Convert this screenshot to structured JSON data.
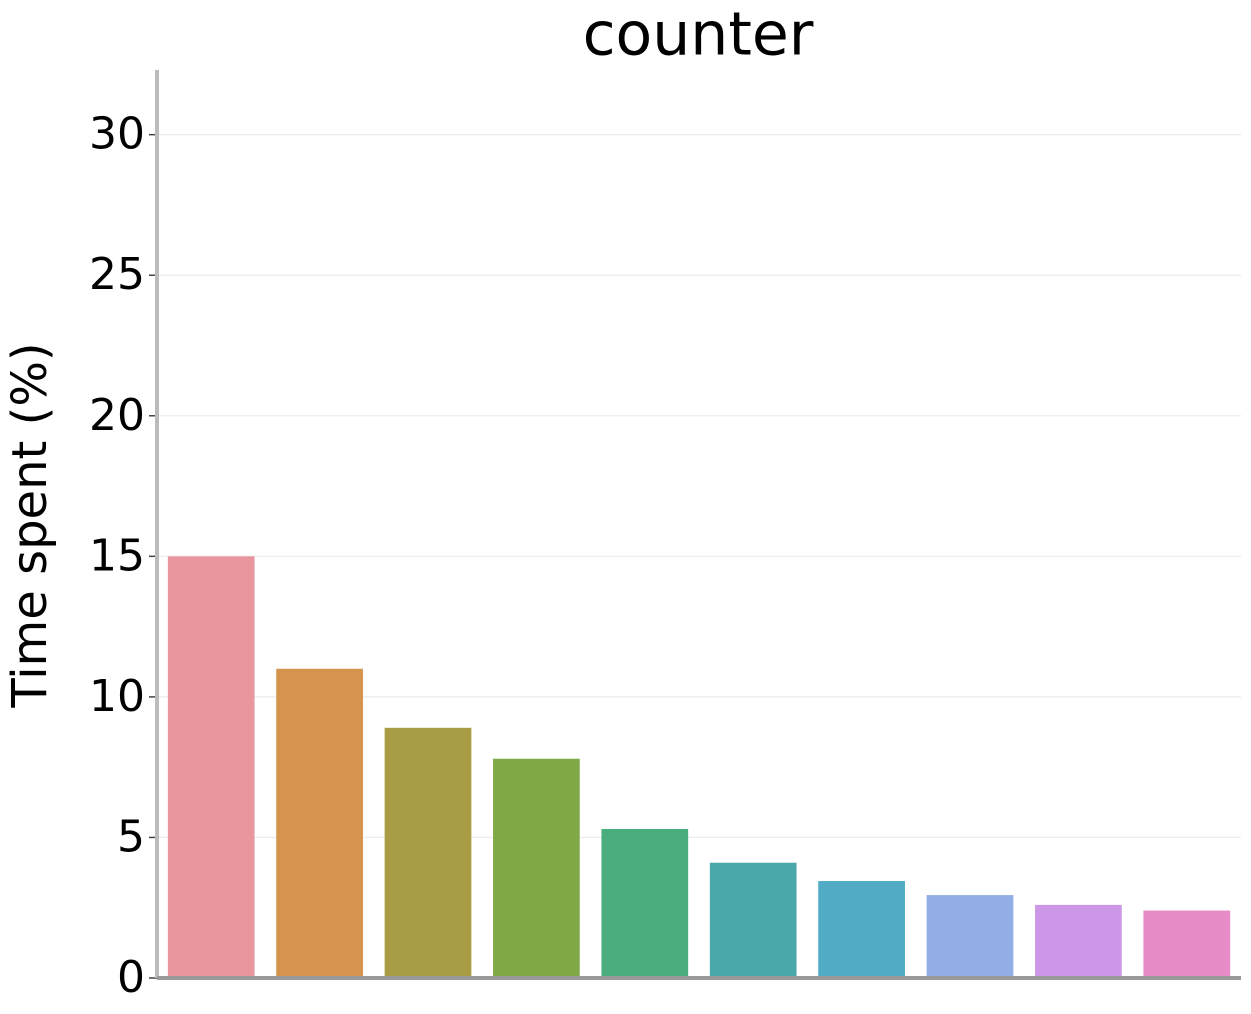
{
  "chart_data": {
    "type": "bar",
    "title": "counter",
    "y_label": "Time spent (%)",
    "categories": [
      null,
      null,
      null,
      null,
      null,
      null,
      null,
      null,
      null,
      null
    ],
    "values": [
      15.0,
      11.0,
      8.9,
      7.8,
      5.3,
      4.1,
      3.45,
      2.95,
      2.6,
      2.4
    ],
    "colors": [
      "#e9969f",
      "#d5944e",
      "#a89d45",
      "#7fa847",
      "#49ad7e",
      "#4aa9a8",
      "#51abc5",
      "#93aee6",
      "#cb97e6",
      "#e88cc8"
    ],
    "ylim": [
      0,
      32.3
    ],
    "yticks": [
      0,
      5,
      10,
      15,
      20,
      25,
      30
    ],
    "grid": true
  }
}
